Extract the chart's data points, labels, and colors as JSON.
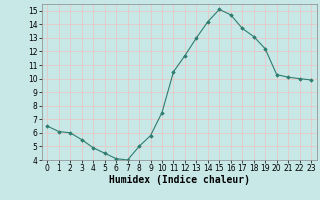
{
  "x": [
    0,
    1,
    2,
    3,
    4,
    5,
    6,
    7,
    8,
    9,
    10,
    11,
    12,
    13,
    14,
    15,
    16,
    17,
    18,
    19,
    20,
    21,
    22,
    23
  ],
  "y": [
    6.5,
    6.1,
    6.0,
    5.5,
    4.9,
    4.5,
    4.1,
    4.0,
    5.0,
    5.8,
    7.5,
    10.5,
    11.7,
    13.0,
    14.2,
    15.1,
    14.7,
    13.7,
    13.1,
    12.2,
    10.3,
    10.1,
    10.0,
    9.9
  ],
  "line_color": "#2e7d6e",
  "marker": "D",
  "marker_size": 1.8,
  "line_width": 0.8,
  "xlabel": "Humidex (Indice chaleur)",
  "ylim": [
    4,
    15.5
  ],
  "xlim": [
    -0.5,
    23.5
  ],
  "yticks": [
    4,
    5,
    6,
    7,
    8,
    9,
    10,
    11,
    12,
    13,
    14,
    15
  ],
  "xticks": [
    0,
    1,
    2,
    3,
    4,
    5,
    6,
    7,
    8,
    9,
    10,
    11,
    12,
    13,
    14,
    15,
    16,
    17,
    18,
    19,
    20,
    21,
    22,
    23
  ],
  "bg_color": "#c8e8e8",
  "grid_color": "#e8c8c8",
  "xlabel_fontsize": 7,
  "tick_fontsize": 5.5
}
